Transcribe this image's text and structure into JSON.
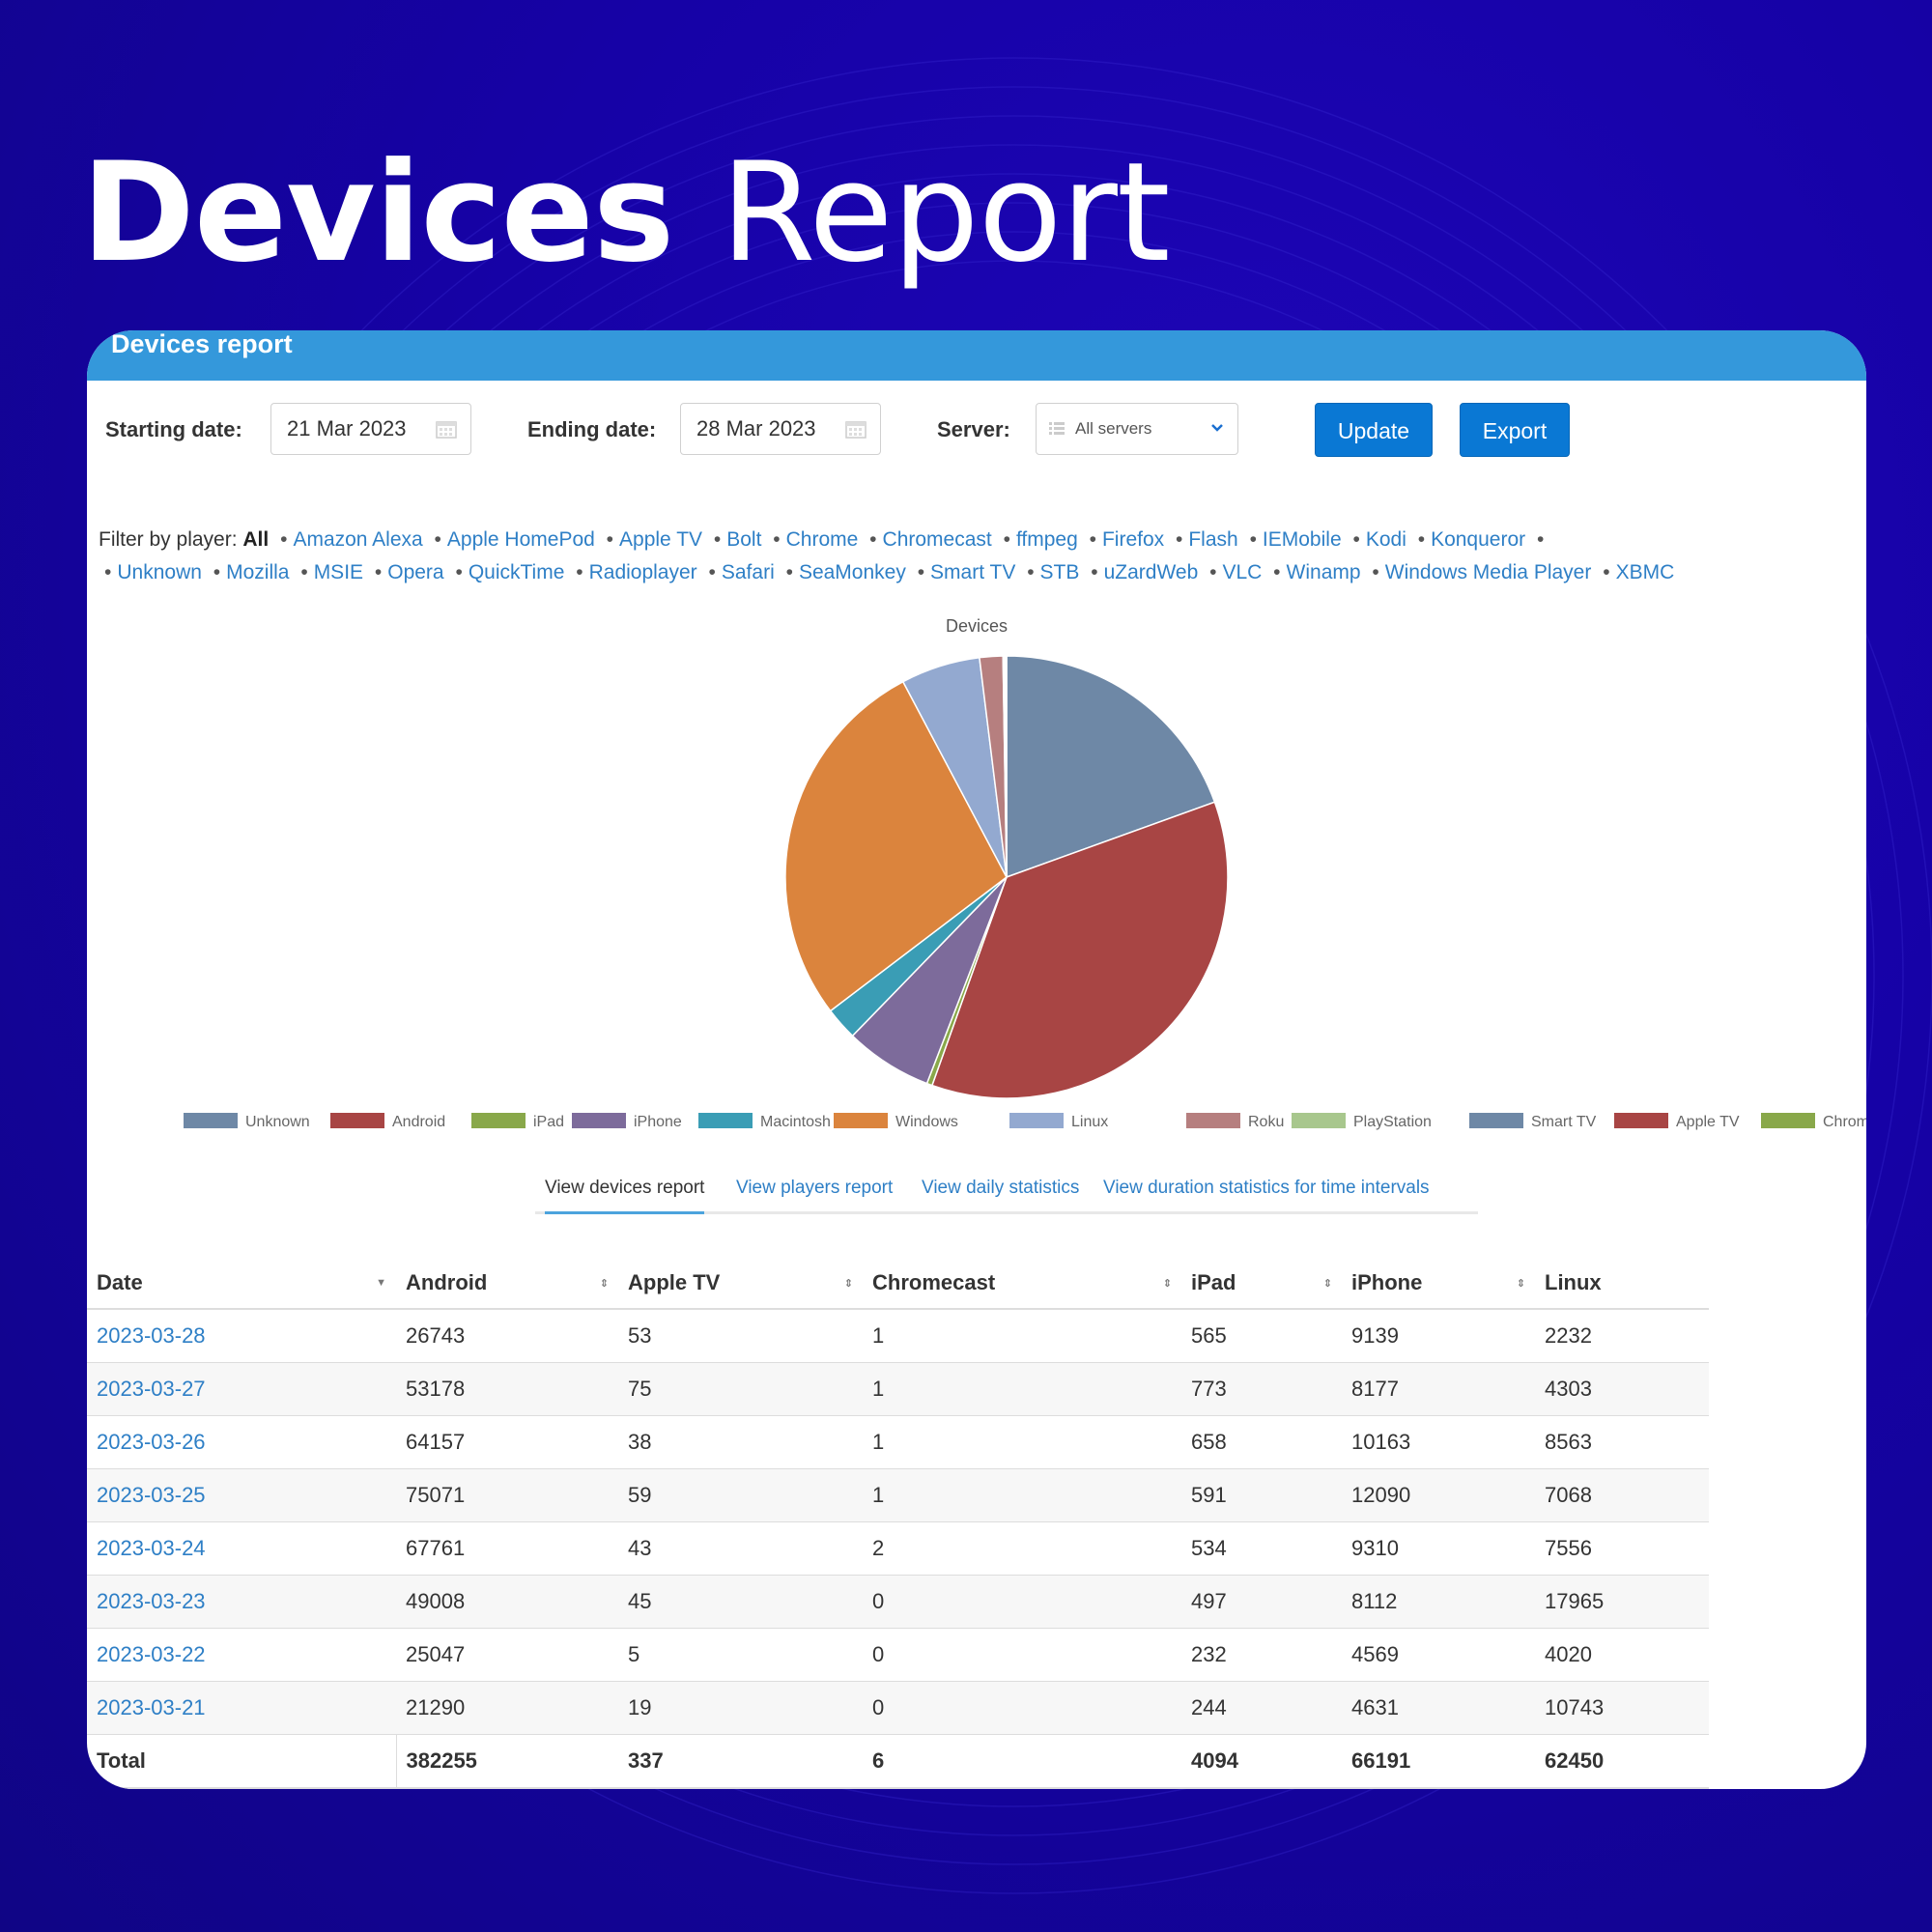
{
  "hero": {
    "title_bold": "Devices",
    "title_light": "Report"
  },
  "card": {
    "header": "Devices report"
  },
  "toolbar": {
    "start_label": "Starting date:",
    "start_value": "21 Mar 2023",
    "end_label": "Ending date:",
    "end_value": "28 Mar 2023",
    "server_label": "Server:",
    "server_value": "All servers",
    "update_label": "Update",
    "export_label": "Export"
  },
  "filter": {
    "label": "Filter by player:",
    "current": "All",
    "players": [
      "Amazon Alexa",
      "Apple HomePod",
      "Apple TV",
      "Bolt",
      "Chrome",
      "Chromecast",
      "ffmpeg",
      "Firefox",
      "Flash",
      "IEMobile",
      "Kodi",
      "Konqueror",
      "Unknown",
      "Mozilla",
      "MSIE",
      "Opera",
      "QuickTime",
      "Radioplayer",
      "Safari",
      "SeaMonkey",
      "Smart TV",
      "STB",
      "uZardWeb",
      "VLC",
      "Winamp",
      "Windows Media Player",
      "XBMC"
    ]
  },
  "chart_data": {
    "type": "pie",
    "title": "Devices",
    "labels": [
      "Unknown",
      "Android",
      "iPad",
      "iPhone",
      "Macintosh",
      "Windows",
      "Linux",
      "Roku",
      "PlayStation",
      "Smart TV",
      "Apple TV",
      "Chromecast"
    ],
    "values": [
      19.5,
      36.0,
      0.4,
      6.4,
      2.4,
      27.6,
      5.8,
      1.7,
      0.1,
      0.1,
      0.05,
      0.01
    ],
    "colors": [
      "#6e88a6",
      "#a84544",
      "#89a84a",
      "#7d6b9b",
      "#3a9db5",
      "#db843d",
      "#93a9d0",
      "#b67f7f",
      "#a8c78d",
      "#6e88a6",
      "#a84544",
      "#89a84a"
    ],
    "legend_position": "bottom"
  },
  "tabs": [
    "View devices report",
    "View players report",
    "View daily statistics",
    "View duration statistics for time intervals"
  ],
  "table": {
    "columns": [
      "Date",
      "Android",
      "Apple TV",
      "Chromecast",
      "iPad",
      "iPhone",
      "Linux"
    ],
    "rows": [
      [
        "2023-03-28",
        "26743",
        "53",
        "1",
        "565",
        "9139",
        "2232"
      ],
      [
        "2023-03-27",
        "53178",
        "75",
        "1",
        "773",
        "8177",
        "4303"
      ],
      [
        "2023-03-26",
        "64157",
        "38",
        "1",
        "658",
        "10163",
        "8563"
      ],
      [
        "2023-03-25",
        "75071",
        "59",
        "1",
        "591",
        "12090",
        "7068"
      ],
      [
        "2023-03-24",
        "67761",
        "43",
        "2",
        "534",
        "9310",
        "7556"
      ],
      [
        "2023-03-23",
        "49008",
        "45",
        "0",
        "497",
        "8112",
        "17965"
      ],
      [
        "2023-03-22",
        "25047",
        "5",
        "0",
        "232",
        "4569",
        "4020"
      ],
      [
        "2023-03-21",
        "21290",
        "19",
        "0",
        "244",
        "4631",
        "10743"
      ]
    ],
    "total": [
      "Total",
      "382255",
      "337",
      "6",
      "4094",
      "66191",
      "62450"
    ]
  }
}
